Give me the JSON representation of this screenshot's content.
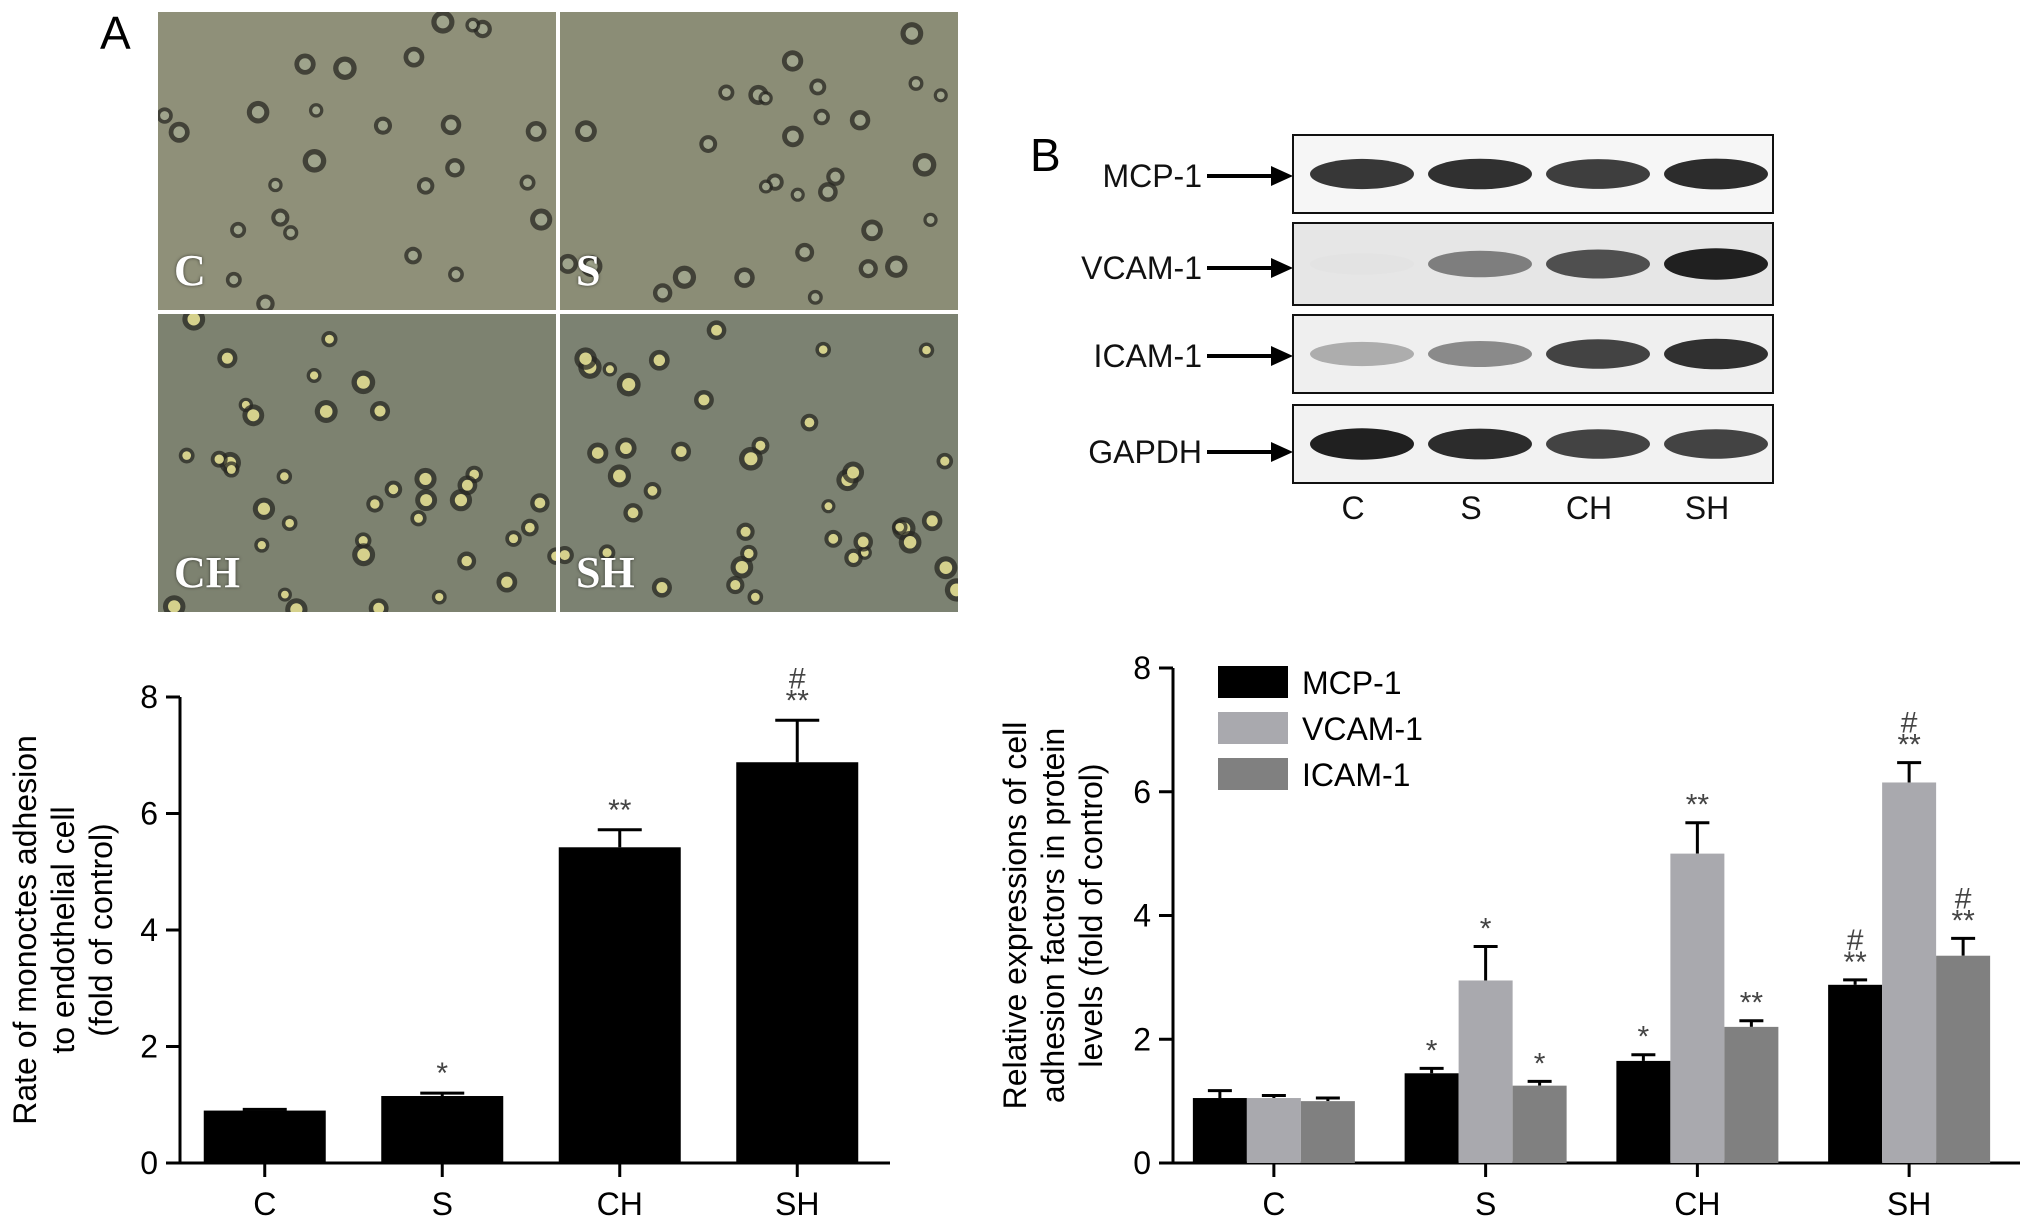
{
  "panel_a": {
    "letter": "A",
    "micrographs": [
      {
        "label": "C",
        "tone": "#8f9079",
        "cells": 26
      },
      {
        "label": "S",
        "tone": "#8b8d76",
        "cells": 30
      },
      {
        "label": "CH",
        "tone": "#7d8270",
        "cells": 38
      },
      {
        "label": "SH",
        "tone": "#7c8272",
        "cells": 40
      }
    ]
  },
  "panel_b": {
    "letter": "B",
    "blots": [
      {
        "label": "MCP-1",
        "bands": [
          0.85,
          0.88,
          0.82,
          0.9
        ],
        "background": "#f6f6f6"
      },
      {
        "label": "VCAM-1",
        "bands": [
          0.12,
          0.55,
          0.75,
          0.95
        ],
        "background": "#e6e6e6"
      },
      {
        "label": "ICAM-1",
        "bands": [
          0.35,
          0.5,
          0.8,
          0.88
        ],
        "background": "#efefef"
      },
      {
        "label": "GAPDH",
        "bands": [
          0.95,
          0.9,
          0.8,
          0.8
        ],
        "background": "#f2f2f2"
      }
    ],
    "lanes": [
      "C",
      "S",
      "CH",
      "SH"
    ]
  },
  "chart_data": [
    {
      "type": "bar",
      "categories": [
        "C",
        "S",
        "CH",
        "SH"
      ],
      "values": [
        0.9,
        1.15,
        5.42,
        6.88
      ],
      "errors": [
        0.02,
        0.05,
        0.3,
        0.72
      ],
      "annotations": [
        [],
        [
          "*"
        ],
        [
          "**"
        ],
        [
          "**",
          "#"
        ]
      ],
      "ylabel_lines": [
        "Rate of monoctes adhesion",
        "to endothelial cell",
        "(fold of control)"
      ],
      "ylim": [
        0,
        8
      ],
      "yticks": [
        0,
        2,
        4,
        6,
        8
      ],
      "color": "#000000"
    },
    {
      "type": "bar",
      "categories": [
        "C",
        "S",
        "CH",
        "SH"
      ],
      "series": [
        {
          "name": "MCP-1",
          "color": "#000000",
          "values": [
            1.05,
            1.45,
            1.65,
            2.88
          ],
          "errors": [
            0.12,
            0.08,
            0.1,
            0.08
          ],
          "annotations": [
            [],
            [
              "*"
            ],
            [
              "*"
            ],
            [
              "**",
              "#"
            ]
          ]
        },
        {
          "name": "VCAM-1",
          "color": "#a9a9ae",
          "values": [
            1.05,
            2.95,
            5.0,
            6.15
          ],
          "errors": [
            0.04,
            0.55,
            0.5,
            0.32
          ],
          "annotations": [
            [],
            [
              "*"
            ],
            [
              "**"
            ],
            [
              "**",
              "#"
            ]
          ]
        },
        {
          "name": "ICAM-1",
          "color": "#808080",
          "values": [
            1.0,
            1.25,
            2.2,
            3.35
          ],
          "errors": [
            0.05,
            0.07,
            0.1,
            0.28
          ],
          "annotations": [
            [],
            [
              "*"
            ],
            [
              "**"
            ],
            [
              "**",
              "#"
            ]
          ]
        }
      ],
      "ylabel_lines": [
        "Relative expressions of cell",
        "adhesion factors in protein",
        "levels (fold of control)"
      ],
      "ylim": [
        0,
        8
      ],
      "yticks": [
        0,
        2,
        4,
        6,
        8
      ],
      "legend": "top-left"
    }
  ]
}
